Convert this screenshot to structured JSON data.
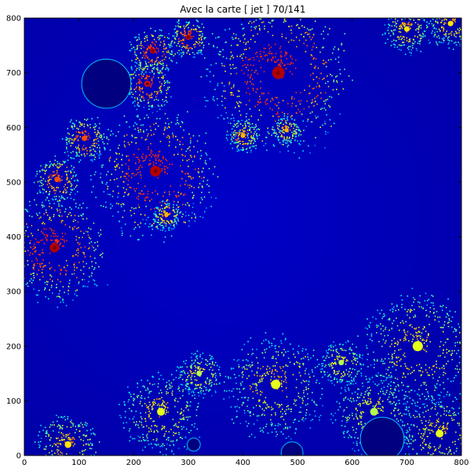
{
  "chart_data": {
    "type": "heatmap",
    "title": "Avec la carte   [ jet ]   70/141",
    "colormap": "jet",
    "xlim": [
      0,
      800
    ],
    "ylim": [
      800,
      0
    ],
    "x_ticks": [
      "0",
      "100",
      "200",
      "300",
      "400",
      "500",
      "600",
      "700",
      "800"
    ],
    "y_ticks": [
      "0",
      "100",
      "200",
      "300",
      "400",
      "500",
      "600",
      "700",
      "800"
    ],
    "grid": false,
    "legend": "none",
    "colors": {
      "background": "#000090",
      "field": "#0000cc",
      "mid": "#00ccff",
      "high": "#ffff00",
      "peak": "#cc0000"
    }
  }
}
